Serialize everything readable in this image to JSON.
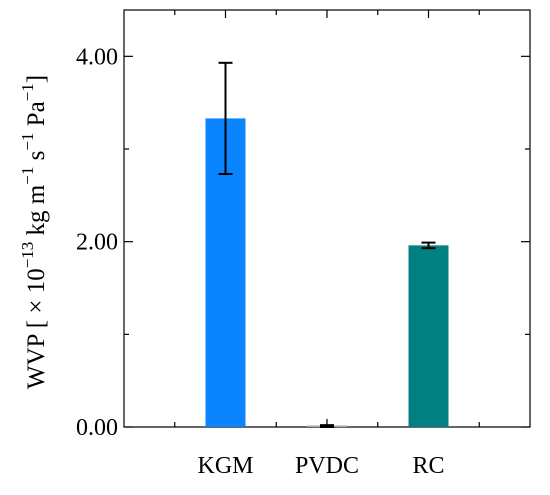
{
  "chart_data": {
    "type": "bar",
    "categories": [
      "KGM",
      "PVDC",
      "RC"
    ],
    "series": [
      {
        "values": [
          3.33,
          0.01,
          1.96
        ],
        "errors": [
          0.6,
          0.01,
          0.03
        ],
        "colors": [
          "#0A84FF",
          "#A9A9A9",
          "#008080"
        ]
      }
    ],
    "ylabel_parts": {
      "main": "WVP [ × 10",
      "exp13": "−13",
      "kgm": " kg m",
      "expm": "−1",
      "s": " s",
      "exps": "−1",
      "pa": " Pa",
      "exppa": "−1",
      "close": "]"
    },
    "ylim": [
      0,
      4.5
    ],
    "yticks_major": [
      0,
      2,
      4
    ],
    "ytick_labels": [
      "0.00",
      "2.00",
      "4.00"
    ],
    "yticks_minor": [
      1,
      3
    ],
    "grid": false,
    "legend": "none"
  }
}
